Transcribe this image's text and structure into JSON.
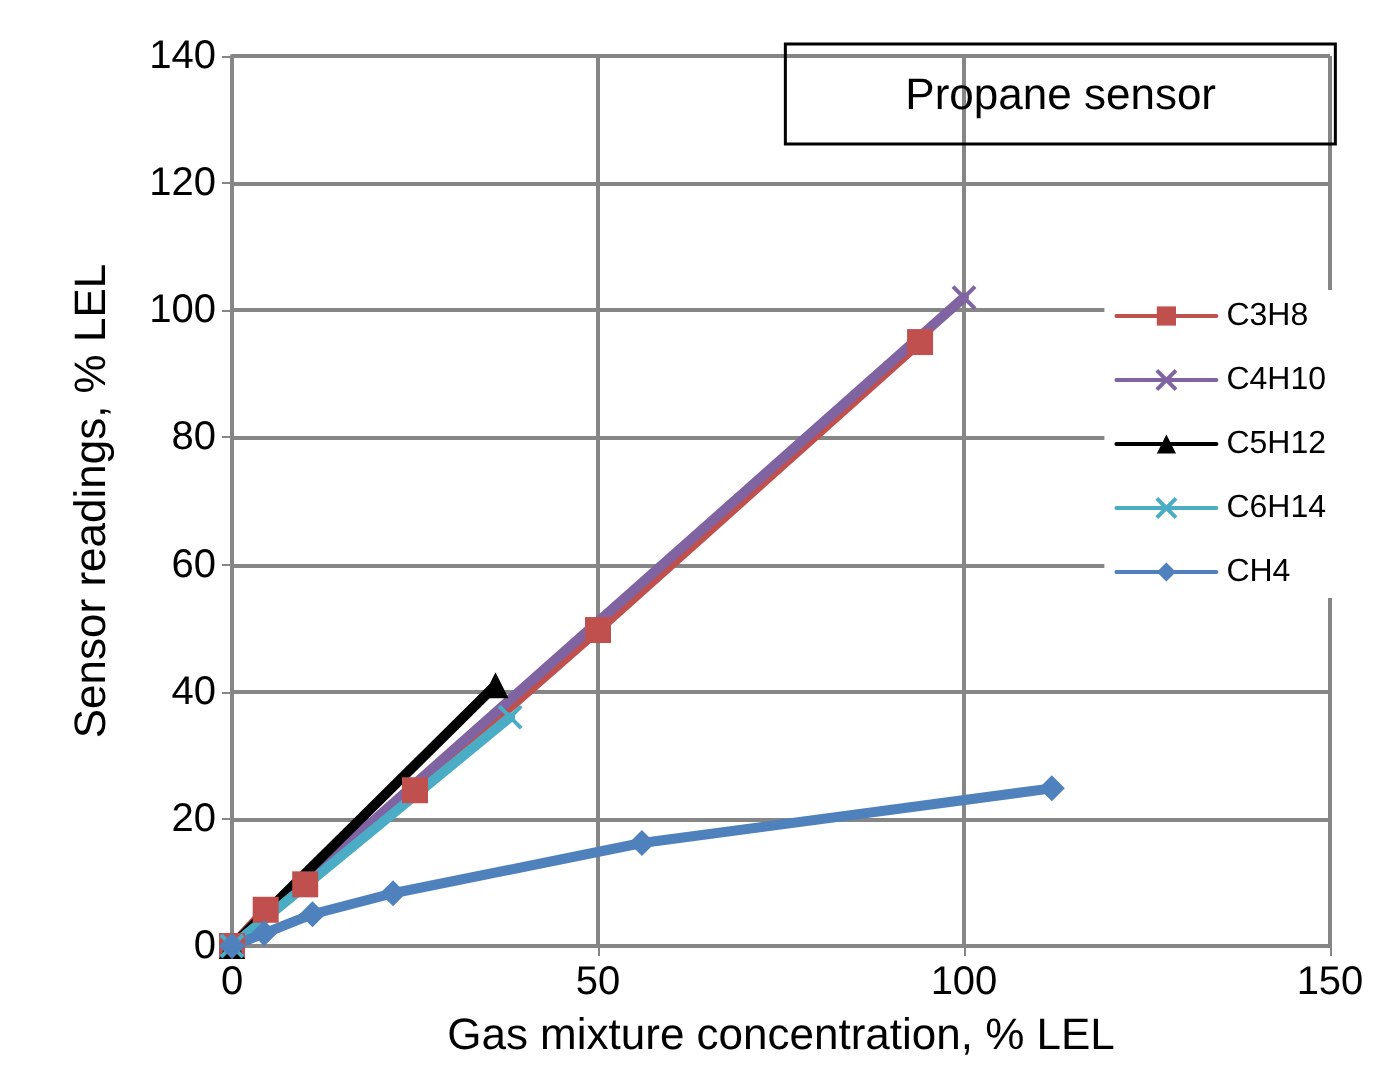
{
  "chart_data": {
    "type": "line",
    "title": "Propane sensor",
    "xlabel": "Gas mixture concentration, % LEL",
    "ylabel": "Sensor readings, % LEL",
    "xlim": [
      0,
      150
    ],
    "xticks": [
      0,
      50,
      100,
      150
    ],
    "ylim": [
      0,
      140
    ],
    "yticks": [
      0,
      20,
      40,
      60,
      80,
      100,
      120,
      140
    ],
    "grid": true,
    "legend": "right",
    "line_style": "solid",
    "series": [
      {
        "name": "C3H8",
        "color": "#c0504d",
        "marker": "square",
        "x": [
          0,
          4.6,
          10,
          25,
          50,
          94
        ],
        "values": [
          0,
          5.7,
          9.7,
          24.5,
          49.7,
          95
        ]
      },
      {
        "name": "C4H10",
        "color": "#8064a2",
        "marker": "cross",
        "x": [
          0,
          100
        ],
        "values": [
          0,
          102
        ]
      },
      {
        "name": "C5H12",
        "color": "#000000",
        "marker": "triangle",
        "x": [
          0,
          36
        ],
        "values": [
          0,
          41
        ]
      },
      {
        "name": "C6H14",
        "color": "#4bacc6",
        "marker": "cross",
        "x": [
          0,
          38
        ],
        "values": [
          0,
          36
        ]
      },
      {
        "name": "CH4",
        "color": "#4f81bd",
        "marker": "diamond",
        "x": [
          0,
          4.4,
          11,
          22,
          56,
          112
        ],
        "values": [
          0,
          2,
          5,
          8.3,
          16.2,
          24.8
        ]
      }
    ]
  }
}
